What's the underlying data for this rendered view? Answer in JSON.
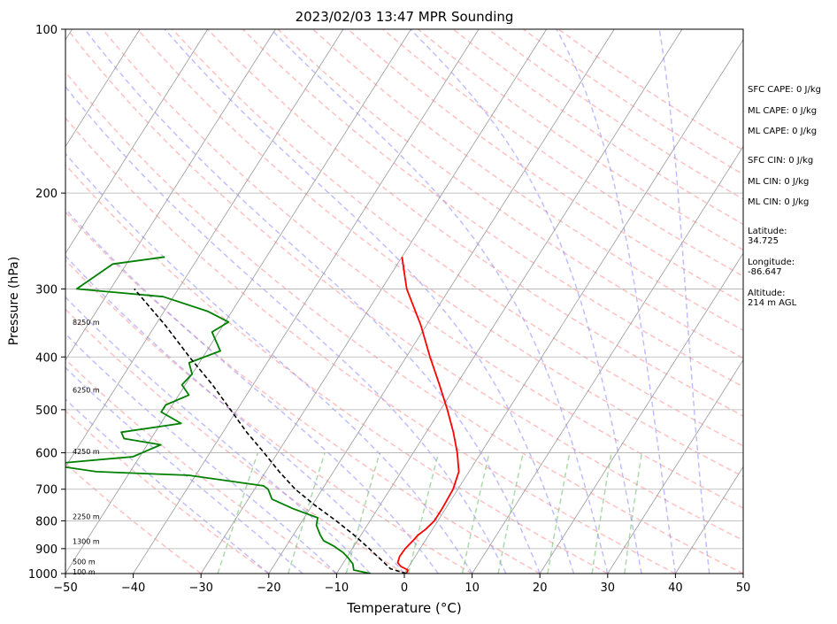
{
  "chart_data": {
    "type": "line",
    "title": "2023/02/03 13:47 MPR Sounding",
    "xlabel": "Temperature (°C)",
    "ylabel": "Pressure (hPa)",
    "xlim": [
      -50,
      50
    ],
    "ylim": [
      1000,
      100
    ],
    "y_scale": "log",
    "x_ticks": [
      -50,
      -40,
      -30,
      -20,
      -10,
      0,
      10,
      20,
      30,
      40,
      50
    ],
    "x_tick_labels": [
      "−50",
      "−40",
      "−30",
      "−20",
      "−10",
      "0",
      "10",
      "20",
      "30",
      "40",
      "50"
    ],
    "y_ticks": [
      1000,
      900,
      800,
      700,
      600,
      500,
      400,
      300,
      200,
      100
    ],
    "skew_lines_every_10c": true,
    "grid": true,
    "series": [
      {
        "role": "temperature",
        "color": "#ff0000",
        "points": [
          [
            1000,
            0.3
          ],
          [
            985,
            0.2
          ],
          [
            970,
            -1.2
          ],
          [
            955,
            -2.0
          ],
          [
            930,
            -2.3
          ],
          [
            900,
            -2.2
          ],
          [
            870,
            -1.8
          ],
          [
            850,
            -1.6
          ],
          [
            830,
            -1.0
          ],
          [
            800,
            -0.5
          ],
          [
            760,
            -0.5
          ],
          [
            700,
            -0.7
          ],
          [
            650,
            -1.5
          ],
          [
            600,
            -3.5
          ],
          [
            550,
            -6.0
          ],
          [
            500,
            -9.0
          ],
          [
            450,
            -12.5
          ],
          [
            400,
            -16.5
          ],
          [
            350,
            -20.8
          ],
          [
            320,
            -24.0
          ],
          [
            300,
            -26.3
          ],
          [
            280,
            -28.2
          ],
          [
            262,
            -30.0
          ]
        ]
      },
      {
        "role": "dewpoint",
        "color": "#008000",
        "points": [
          [
            1000,
            -5.0
          ],
          [
            985,
            -7.8
          ],
          [
            960,
            -8.5
          ],
          [
            935,
            -9.8
          ],
          [
            915,
            -11.0
          ],
          [
            890,
            -13.0
          ],
          [
            870,
            -15.0
          ],
          [
            850,
            -16.0
          ],
          [
            815,
            -17.5
          ],
          [
            790,
            -18.0
          ],
          [
            760,
            -22.5
          ],
          [
            730,
            -26.5
          ],
          [
            700,
            -28.0
          ],
          [
            690,
            -29.0
          ],
          [
            660,
            -41.0
          ],
          [
            650,
            -55.0
          ],
          [
            630,
            -63.0
          ],
          [
            610,
            -51.0
          ],
          [
            580,
            -48.0
          ],
          [
            565,
            -54.0
          ],
          [
            550,
            -55.0
          ],
          [
            530,
            -47.0
          ],
          [
            505,
            -51.0
          ],
          [
            490,
            -51.0
          ],
          [
            470,
            -48.5
          ],
          [
            450,
            -50.5
          ],
          [
            430,
            -50.0
          ],
          [
            410,
            -51.5
          ],
          [
            390,
            -48.0
          ],
          [
            360,
            -51.0
          ],
          [
            345,
            -49.5
          ],
          [
            330,
            -53.5
          ],
          [
            310,
            -61.5
          ],
          [
            300,
            -75.0
          ],
          [
            270,
            -72.0
          ],
          [
            262,
            -65.0
          ]
        ]
      },
      {
        "role": "parcel",
        "color": "#000000",
        "dashed": true,
        "points": [
          [
            1000,
            0.3
          ],
          [
            980,
            -2.5
          ],
          [
            955,
            -4.0
          ],
          [
            900,
            -7.5
          ],
          [
            850,
            -11.0
          ],
          [
            800,
            -15.0
          ],
          [
            750,
            -19.5
          ],
          [
            700,
            -24.0
          ],
          [
            650,
            -28.0
          ],
          [
            600,
            -32.0
          ],
          [
            550,
            -36.5
          ],
          [
            500,
            -41.0
          ],
          [
            450,
            -46.0
          ],
          [
            400,
            -52.0
          ],
          [
            350,
            -58.5
          ],
          [
            300,
            -66.5
          ]
        ]
      }
    ],
    "height_labels": [
      {
        "text": "100 m",
        "p": 993
      },
      {
        "text": "500 m",
        "p": 950
      },
      {
        "text": "1300 m",
        "p": 872
      },
      {
        "text": "2250 m",
        "p": 785
      },
      {
        "text": "4250 m",
        "p": 597
      },
      {
        "text": "6250 m",
        "p": 460
      },
      {
        "text": "8250 m",
        "p": 345
      }
    ],
    "annotations": [
      "SFC CAPE: 0 J/kg",
      "ML CAPE: 0 J/kg",
      "ML CAPE: 0 J/kg",
      "SFC CIN: 0 J/kg",
      "ML CIN: 0 J/kg",
      "ML CIN: 0 J/kg",
      "Latitude:",
      "34.725",
      "Longitude:",
      "-86.647",
      "Altitude:",
      "214 m AGL"
    ],
    "colors": {
      "dry_adiabats": "#ff8c8c",
      "moist_adiabats": "#8080ff",
      "mixing_ratio": "#66bb66",
      "isotherms": "#999999",
      "grid": "#b0b0b0"
    }
  }
}
